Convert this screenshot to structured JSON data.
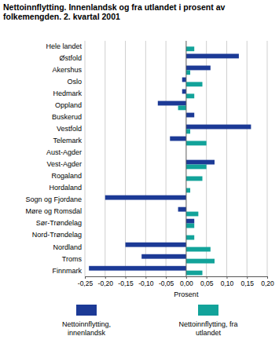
{
  "chart_data": {
    "type": "bar",
    "orientation": "horizontal",
    "title": "Nettoinnflytting. Innenlandsk og fra utlandet i prosent av folkemengden. 2. kvartal 2001",
    "x_label": "Prosent",
    "categories": [
      "Hele landet",
      "Østfold",
      "Akershus",
      "Oslo",
      "Hedmark",
      "Oppland",
      "Buskerud",
      "Vestfold",
      "Telemark",
      "Aust-Agder",
      "Vest-Agder",
      "Rogaland",
      "Hordaland",
      "Sogn og Fjordane",
      "Møre og Romsdal",
      "Sør-Trøndelag",
      "Nord-Trøndelag",
      "Nordland",
      "Troms",
      "Finnmark"
    ],
    "series": [
      {
        "name": "Nettoinnflytting, innenlandsk",
        "color": "#1c3a96",
        "values": [
          0,
          0.13,
          0.06,
          -0.01,
          -0.01,
          -0.07,
          0.02,
          0.16,
          -0.04,
          0,
          0.07,
          0,
          0,
          -0.2,
          -0.02,
          0.02,
          0,
          -0.15,
          -0.11,
          -0.24
        ]
      },
      {
        "name": "Nettoinnflytting, fra utlandet",
        "color": "#12a39a",
        "values": [
          0.02,
          0,
          0.01,
          0.04,
          0.02,
          -0.02,
          0,
          0.01,
          0.05,
          0,
          0.05,
          0.04,
          0.01,
          0,
          0.03,
          0.02,
          0.02,
          0.06,
          0.07,
          0.04
        ]
      }
    ],
    "xlim": [
      -0.25,
      0.2
    ],
    "xticks": [
      {
        "value": -0.25,
        "label": "-0,25"
      },
      {
        "value": -0.2,
        "label": "-0,20"
      },
      {
        "value": -0.15,
        "label": "-0,15"
      },
      {
        "value": -0.1,
        "label": "-0,10"
      },
      {
        "value": -0.05,
        "label": "-0,05"
      },
      {
        "value": 0,
        "label": "0,00"
      },
      {
        "value": 0.05,
        "label": "0,05"
      },
      {
        "value": 0.1,
        "label": "0,10"
      },
      {
        "value": 0.15,
        "label": "0,15"
      },
      {
        "value": 0.2,
        "label": "0,20"
      }
    ],
    "grid": true,
    "legend": "bottom"
  }
}
